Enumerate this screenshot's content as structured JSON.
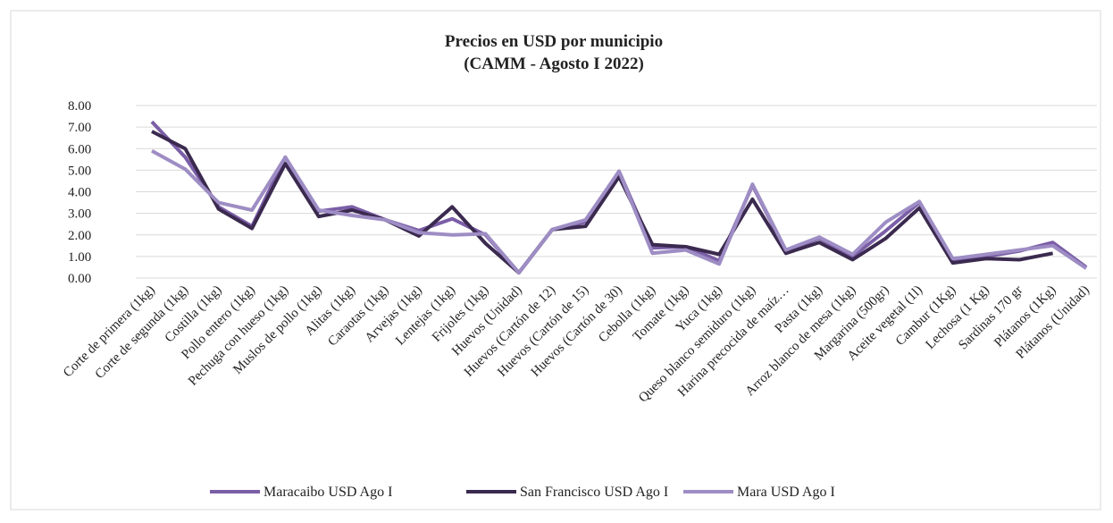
{
  "chart_data": {
    "type": "line",
    "title": "Precios en USD por municipio",
    "subtitle": "(CAMM - Agosto I 2022)",
    "categories": [
      "Corte de primera (1kg)",
      "Corte de segunda (1kg)",
      "Costilla (1kg)",
      "Pollo entero (1kg)",
      "Pechuga con hueso (1kg)",
      "Muslos de pollo (1kg)",
      "Alitas (1kg)",
      "Caraotas (1kg)",
      "Arvejas (1kg)",
      "Lentejas (1kg)",
      "Frijoles (1kg)",
      "Huevos (Unidad)",
      "Huevos (Cartón de 12)",
      "Huevos (Cartón de 15)",
      "Huevos (Cartón de 30)",
      "Cebolla (1kg)",
      "Tomate (1kg)",
      "Yuca (1kg)",
      "Queso blanco semiduro (1kg)",
      "Harina precocida de maíz…",
      "Pasta (1kg)",
      "Arroz blanco de mesa (1kg)",
      "Margarina (500gr)",
      "Aceite vegetal (1l)",
      "Cambur (1Kg)",
      "Lechosa (1 Kg)",
      "Sardinas 170 gr",
      "Plátanos (1Kg)",
      "Plátanos (Unidad)"
    ],
    "series": [
      {
        "name": "Maracaibo USD Ago I",
        "color": "#7b5ea7",
        "values": [
          7.25,
          5.6,
          3.3,
          2.4,
          5.6,
          3.1,
          3.3,
          2.7,
          2.2,
          2.75,
          2.0,
          0.25,
          2.25,
          2.6,
          4.95,
          1.4,
          1.45,
          0.8,
          4.3,
          1.25,
          1.85,
          1.0,
          2.2,
          3.5,
          0.85,
          1.0,
          1.25,
          1.65,
          0.5
        ]
      },
      {
        "name": "San Francisco USD Ago I",
        "color": "#3b2a4f",
        "values": [
          6.8,
          6.0,
          3.2,
          2.3,
          5.3,
          2.85,
          3.15,
          2.7,
          1.95,
          3.3,
          1.6,
          0.25,
          2.25,
          2.4,
          4.7,
          1.55,
          1.45,
          1.1,
          3.65,
          1.15,
          1.65,
          0.85,
          1.85,
          3.25,
          0.7,
          0.9,
          0.85,
          1.15,
          null
        ]
      },
      {
        "name": "Mara USD Ago I",
        "color": "#9e8dc4",
        "values": [
          5.9,
          5.05,
          3.5,
          3.15,
          5.6,
          3.15,
          2.9,
          2.7,
          2.1,
          2.0,
          2.05,
          0.25,
          2.25,
          2.7,
          4.95,
          1.15,
          1.3,
          0.65,
          4.35,
          1.3,
          1.9,
          1.1,
          2.6,
          3.55,
          0.9,
          1.1,
          1.3,
          1.5,
          0.45
        ]
      }
    ],
    "ylim": [
      0,
      8
    ],
    "yticks": [
      {
        "value": 0,
        "label": "0.00"
      },
      {
        "value": 1,
        "label": "1.00"
      },
      {
        "value": 2,
        "label": "2.00"
      },
      {
        "value": 3,
        "label": "3.00"
      },
      {
        "value": 4,
        "label": "4.00"
      },
      {
        "value": 5,
        "label": "5.00"
      },
      {
        "value": 6,
        "label": "6.00"
      },
      {
        "value": 7,
        "label": "7.00"
      },
      {
        "value": 8,
        "label": "8.00"
      }
    ],
    "grid": true,
    "legend": "bottom"
  }
}
